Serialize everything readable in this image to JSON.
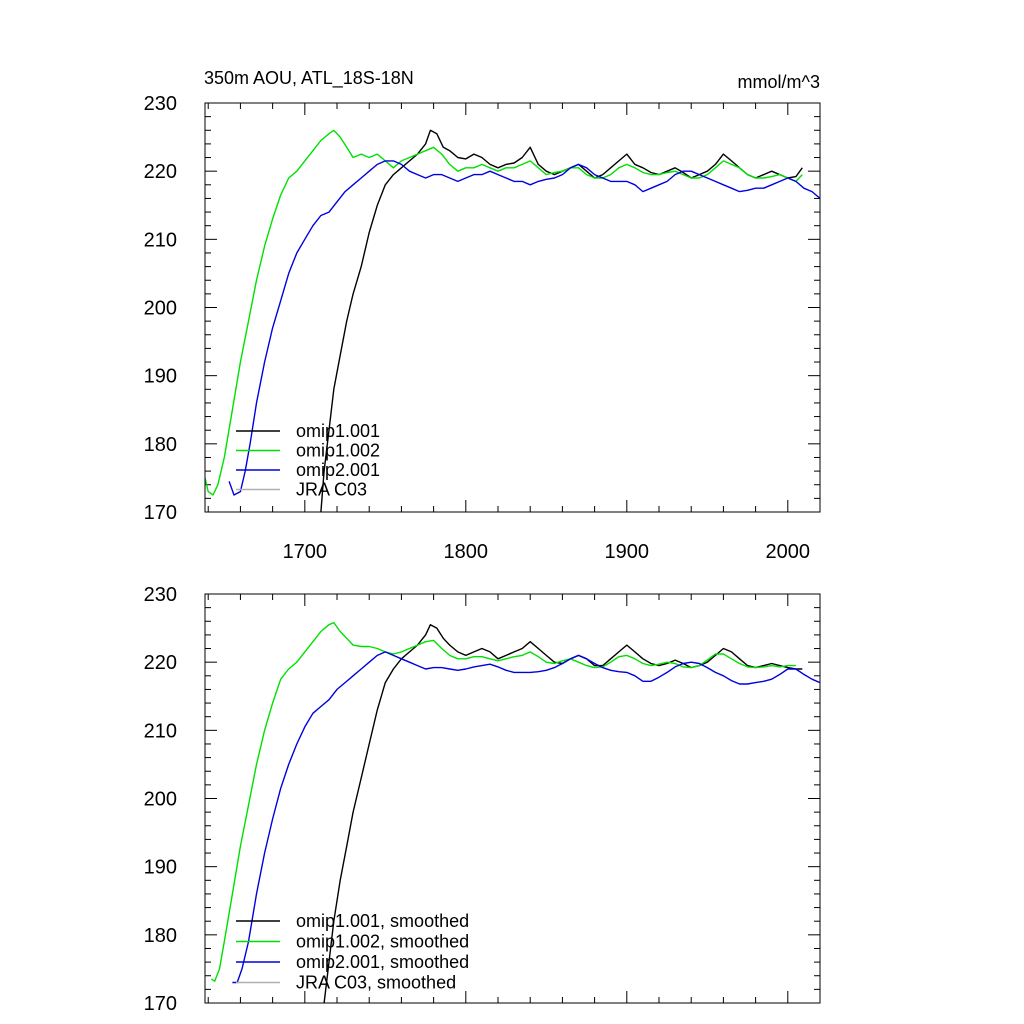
{
  "colors": {
    "omip1_001": "#000000",
    "omip1_002": "#00e000",
    "omip2_001": "#0000e0",
    "jra_c03": "#b0b0b0"
  },
  "chart_data": [
    {
      "type": "line",
      "title": "350m AOU, ATL_18S-18N",
      "units": "mmol/m^3",
      "xlim": [
        1638,
        2020
      ],
      "ylim": [
        170,
        230
      ],
      "x_ticks": [
        1700,
        1800,
        1900,
        2000
      ],
      "x_tick_labels": [
        "1700",
        "1800",
        "1900",
        "2000"
      ],
      "y_ticks": [
        170,
        180,
        190,
        200,
        210,
        220,
        230
      ],
      "y_tick_labels": [
        "170",
        "180",
        "190",
        "200",
        "210",
        "220",
        "230"
      ],
      "legend_position": "bottom-left",
      "series": [
        {
          "name": "omip1.001",
          "color": "#000000",
          "x": [
            1710,
            1712,
            1715,
            1718,
            1722,
            1726,
            1730,
            1735,
            1740,
            1745,
            1750,
            1755,
            1760,
            1765,
            1770,
            1775,
            1778,
            1782,
            1786,
            1790,
            1795,
            1800,
            1805,
            1810,
            1815,
            1820,
            1825,
            1830,
            1835,
            1840,
            1845,
            1850,
            1855,
            1860,
            1865,
            1870,
            1875,
            1880,
            1885,
            1890,
            1895,
            1900,
            1905,
            1910,
            1915,
            1920,
            1925,
            1930,
            1935,
            1940,
            1945,
            1950,
            1955,
            1960,
            1965,
            1970,
            1975,
            1980,
            1985,
            1990,
            1995,
            2000,
            2005,
            2009
          ],
          "y": [
            170,
            176,
            182,
            188,
            193,
            198,
            202,
            206,
            211,
            215,
            218,
            219.5,
            220.5,
            221.5,
            222.5,
            224,
            226,
            225.5,
            223.5,
            223,
            222,
            221.8,
            222.5,
            222,
            221,
            220.5,
            221,
            221.2,
            222,
            223.5,
            221,
            220,
            219.5,
            220,
            220.5,
            221,
            220,
            219,
            219.5,
            220.5,
            221.5,
            222.5,
            221,
            220.5,
            219.8,
            219.5,
            220,
            220.5,
            219.8,
            219,
            219.5,
            220,
            221,
            222.5,
            221.5,
            220.5,
            219.5,
            219,
            219.5,
            220,
            219.5,
            219,
            219.2,
            220.5
          ]
        },
        {
          "name": "omip1.002",
          "color": "#00e000",
          "x": [
            1638,
            1640,
            1643,
            1646,
            1650,
            1655,
            1660,
            1665,
            1670,
            1675,
            1680,
            1685,
            1690,
            1695,
            1700,
            1705,
            1710,
            1715,
            1718,
            1722,
            1726,
            1730,
            1735,
            1740,
            1745,
            1750,
            1755,
            1760,
            1765,
            1770,
            1775,
            1780,
            1785,
            1790,
            1795,
            1800,
            1805,
            1810,
            1815,
            1820,
            1825,
            1830,
            1835,
            1840,
            1845,
            1850,
            1855,
            1860,
            1865,
            1870,
            1875,
            1880,
            1885,
            1890,
            1895,
            1900,
            1905,
            1910,
            1915,
            1920,
            1925,
            1930,
            1935,
            1940,
            1945,
            1950,
            1955,
            1960,
            1965,
            1970,
            1975,
            1980,
            1985,
            1990,
            1995,
            2000,
            2005,
            2009
          ],
          "y": [
            175,
            173,
            172.5,
            174,
            178,
            185,
            192,
            198,
            204,
            209,
            213,
            216.5,
            219,
            220,
            221.5,
            223,
            224.5,
            225.5,
            226,
            225,
            223.5,
            222,
            222.5,
            222,
            222.5,
            221.5,
            220.5,
            221.5,
            222,
            222.5,
            223,
            223.5,
            222.5,
            221,
            220,
            220.5,
            220.5,
            221,
            220.5,
            220,
            220.5,
            220.5,
            221,
            221.5,
            220.5,
            219.5,
            219.8,
            220,
            220.5,
            220.5,
            219.5,
            219,
            219,
            219.5,
            220.5,
            221,
            220.5,
            219.8,
            219.5,
            219.5,
            219.8,
            220,
            219.5,
            219,
            219,
            219.5,
            220.5,
            221.5,
            221,
            220.5,
            219.5,
            219,
            219,
            219.2,
            219.5,
            219,
            218.5,
            219.5
          ]
        },
        {
          "name": "omip2.001",
          "color": "#0000e0",
          "x": [
            1653,
            1656,
            1660,
            1663,
            1666,
            1670,
            1675,
            1680,
            1685,
            1690,
            1695,
            1700,
            1705,
            1710,
            1715,
            1720,
            1725,
            1730,
            1735,
            1740,
            1745,
            1750,
            1755,
            1760,
            1765,
            1770,
            1775,
            1780,
            1785,
            1790,
            1795,
            1800,
            1805,
            1810,
            1815,
            1820,
            1825,
            1830,
            1835,
            1840,
            1845,
            1850,
            1855,
            1860,
            1865,
            1870,
            1875,
            1880,
            1885,
            1890,
            1895,
            1900,
            1905,
            1910,
            1915,
            1920,
            1925,
            1930,
            1935,
            1940,
            1945,
            1950,
            1955,
            1960,
            1965,
            1970,
            1975,
            1980,
            1985,
            1990,
            1995,
            2000,
            2005,
            2010,
            2015,
            2020
          ],
          "y": [
            174.5,
            172.5,
            173,
            176,
            180,
            186,
            192,
            197,
            201,
            205,
            208,
            210,
            212,
            213.5,
            214,
            215.5,
            217,
            218,
            219,
            220,
            221,
            221.5,
            221.5,
            221,
            220,
            219.5,
            219,
            219.5,
            219.5,
            219,
            218.5,
            219,
            219.5,
            219.5,
            220,
            219.5,
            219,
            218.5,
            218.5,
            218,
            218.5,
            218.8,
            219,
            219.5,
            220.5,
            221,
            220.5,
            219.5,
            219,
            218.5,
            218.5,
            218.5,
            218,
            217,
            217.5,
            218,
            218.5,
            219.5,
            220,
            220,
            219.5,
            219,
            218.5,
            218,
            217.5,
            217,
            217.2,
            217.5,
            217.5,
            218,
            218.5,
            219,
            218.5,
            217.5,
            217,
            216
          ]
        },
        {
          "name": "JRA C03",
          "color": "#b0b0b0",
          "x": [],
          "y": []
        }
      ]
    },
    {
      "type": "line",
      "xlim": [
        1638,
        2020
      ],
      "ylim": [
        170,
        230
      ],
      "x_ticks": [
        1700,
        1800,
        1900,
        2000
      ],
      "y_ticks": [
        170,
        180,
        190,
        200,
        210,
        220,
        230
      ],
      "y_tick_labels": [
        "170",
        "180",
        "190",
        "200",
        "210",
        "220",
        "230"
      ],
      "legend_position": "bottom-left",
      "series": [
        {
          "name": "omip1.001, smoothed",
          "color": "#000000",
          "x": [
            1712,
            1715,
            1718,
            1722,
            1726,
            1730,
            1735,
            1740,
            1745,
            1750,
            1755,
            1760,
            1765,
            1770,
            1775,
            1778,
            1782,
            1786,
            1790,
            1795,
            1800,
            1805,
            1810,
            1815,
            1820,
            1825,
            1830,
            1835,
            1840,
            1845,
            1850,
            1855,
            1860,
            1865,
            1870,
            1875,
            1880,
            1885,
            1890,
            1895,
            1900,
            1905,
            1910,
            1915,
            1920,
            1925,
            1930,
            1935,
            1940,
            1945,
            1950,
            1955,
            1960,
            1965,
            1970,
            1975,
            1980,
            1985,
            1990,
            1995,
            2000,
            2005,
            2009
          ],
          "y": [
            170,
            176,
            182,
            188,
            193,
            198,
            203,
            208,
            213,
            217,
            219,
            220.5,
            221.5,
            222.5,
            224,
            225.5,
            225,
            223.5,
            222.5,
            221.5,
            221,
            221.5,
            222,
            221.5,
            220.5,
            221,
            221.5,
            222,
            223,
            222,
            221,
            220,
            219.8,
            220.5,
            221,
            220.5,
            219.5,
            219.5,
            220.5,
            221.5,
            222.5,
            221.5,
            220.5,
            219.8,
            219.5,
            219.8,
            220.3,
            219.8,
            219.2,
            219.5,
            220,
            221,
            222,
            221.5,
            220.5,
            219.5,
            219.2,
            219.5,
            219.8,
            219.5,
            219.2,
            219,
            219
          ]
        },
        {
          "name": "omip1.002, smoothed",
          "color": "#00e000",
          "x": [
            1642,
            1644,
            1647,
            1650,
            1655,
            1660,
            1665,
            1670,
            1675,
            1680,
            1685,
            1690,
            1695,
            1700,
            1705,
            1710,
            1715,
            1718,
            1722,
            1726,
            1730,
            1735,
            1740,
            1745,
            1750,
            1755,
            1760,
            1765,
            1770,
            1775,
            1780,
            1785,
            1790,
            1795,
            1800,
            1805,
            1810,
            1815,
            1820,
            1825,
            1830,
            1835,
            1840,
            1845,
            1850,
            1855,
            1860,
            1865,
            1870,
            1875,
            1880,
            1885,
            1890,
            1895,
            1900,
            1905,
            1910,
            1915,
            1920,
            1925,
            1930,
            1935,
            1940,
            1945,
            1950,
            1955,
            1960,
            1965,
            1970,
            1975,
            1980,
            1985,
            1990,
            1995,
            2000,
            2005
          ],
          "y": [
            173.5,
            173.2,
            175,
            179,
            186,
            193,
            199,
            205,
            210,
            214,
            217.5,
            219,
            220,
            221.5,
            223,
            224.5,
            225.5,
            225.8,
            224.5,
            223.5,
            222.5,
            222.3,
            222.3,
            222,
            221.5,
            221.2,
            221.5,
            222,
            222.5,
            223,
            223.2,
            222,
            221,
            220.5,
            220.5,
            220.8,
            220.8,
            220.5,
            220.2,
            220.5,
            220.8,
            221,
            221.5,
            220.8,
            220,
            219.8,
            220.2,
            220.5,
            220,
            219.5,
            219.2,
            219.3,
            220,
            220.8,
            221,
            220.5,
            219.8,
            219.5,
            219.7,
            220,
            219.8,
            219.3,
            219.2,
            219.5,
            220.3,
            221.2,
            221.2,
            220.5,
            219.8,
            219.3,
            219.2,
            219.3,
            219.5,
            219.3,
            219.5,
            219.5
          ]
        },
        {
          "name": "omip2.001, smoothed",
          "color": "#0000e0",
          "x": [
            1655,
            1658,
            1661,
            1665,
            1670,
            1675,
            1680,
            1685,
            1690,
            1695,
            1700,
            1705,
            1710,
            1715,
            1720,
            1725,
            1730,
            1735,
            1740,
            1745,
            1750,
            1755,
            1760,
            1765,
            1770,
            1775,
            1780,
            1785,
            1790,
            1795,
            1800,
            1805,
            1810,
            1815,
            1820,
            1825,
            1830,
            1835,
            1840,
            1845,
            1850,
            1855,
            1860,
            1865,
            1870,
            1875,
            1880,
            1885,
            1890,
            1895,
            1900,
            1905,
            1910,
            1915,
            1920,
            1925,
            1930,
            1935,
            1940,
            1945,
            1950,
            1955,
            1960,
            1965,
            1970,
            1975,
            1980,
            1985,
            1990,
            1995,
            2000,
            2005,
            2010,
            2015,
            2020
          ],
          "y": [
            173,
            173,
            175,
            179,
            186,
            192,
            197,
            201.5,
            205,
            208,
            210.5,
            212.5,
            213.5,
            214.5,
            216,
            217,
            218,
            219,
            220,
            221,
            221.5,
            221,
            220.5,
            220,
            219.5,
            219,
            219.2,
            219.2,
            219,
            218.8,
            219,
            219.3,
            219.5,
            219.7,
            219.3,
            218.8,
            218.5,
            218.5,
            218.5,
            218.6,
            218.8,
            219.2,
            219.8,
            220.5,
            221,
            220.5,
            219.8,
            219.2,
            218.8,
            218.6,
            218.5,
            218,
            217.2,
            217.2,
            217.8,
            218.5,
            219.3,
            219.8,
            220,
            219.8,
            219.2,
            218.5,
            218,
            217.3,
            216.8,
            216.8,
            217,
            217.2,
            217.5,
            218.2,
            219,
            219,
            218.2,
            217.5,
            217
          ]
        },
        {
          "name": "JRA C03, smoothed",
          "color": "#b0b0b0",
          "x": [],
          "y": []
        }
      ]
    }
  ]
}
